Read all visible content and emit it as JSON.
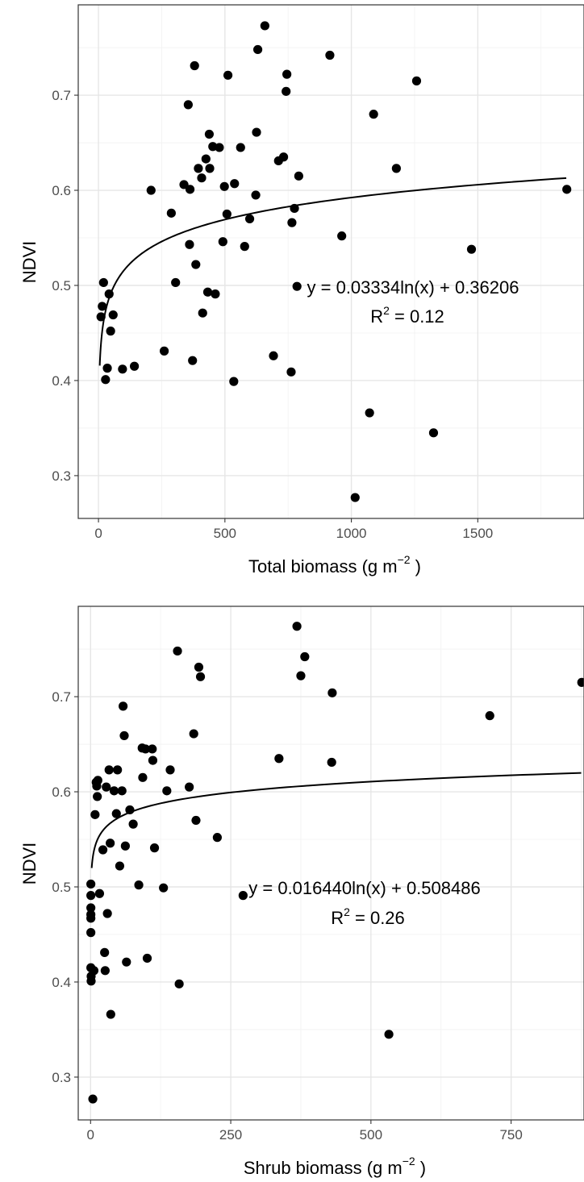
{
  "chart_data": [
    {
      "type": "scatter",
      "xlabel": "Total biomass (g m",
      "xlabel_unit_sup": "−2",
      "xlabel_end": " )",
      "ylabel": "NDVI",
      "xlim": [
        -80,
        1920
      ],
      "ylim": [
        0.255,
        0.795
      ],
      "x_ticks": [
        0,
        500,
        1000,
        1500
      ],
      "x_tick_labels": [
        "0",
        "500",
        "1000",
        "1500"
      ],
      "y_ticks": [
        0.3,
        0.4,
        0.5,
        0.6,
        0.7
      ],
      "y_tick_labels": [
        "0.3",
        "0.4",
        "0.5",
        "0.6",
        "0.7"
      ],
      "grid": true,
      "fit": {
        "a": 0.03334,
        "b": 0.36206,
        "x_start": 5,
        "x_end": 1850
      },
      "annotation": {
        "equation": "y = 0.03334ln(x) + 0.36206",
        "r2_label": "R",
        "r2_sup": "2",
        "r2_value": " = 0.12"
      },
      "points": [
        {
          "x": 10,
          "y": 0.467
        },
        {
          "x": 15,
          "y": 0.478
        },
        {
          "x": 20,
          "y": 0.503
        },
        {
          "x": 28,
          "y": 0.401
        },
        {
          "x": 35,
          "y": 0.413
        },
        {
          "x": 42,
          "y": 0.491
        },
        {
          "x": 48,
          "y": 0.452
        },
        {
          "x": 58,
          "y": 0.469
        },
        {
          "x": 95,
          "y": 0.412
        },
        {
          "x": 142,
          "y": 0.415
        },
        {
          "x": 208,
          "y": 0.6
        },
        {
          "x": 260,
          "y": 0.431
        },
        {
          "x": 288,
          "y": 0.576
        },
        {
          "x": 305,
          "y": 0.503
        },
        {
          "x": 338,
          "y": 0.606
        },
        {
          "x": 355,
          "y": 0.69
        },
        {
          "x": 360,
          "y": 0.543
        },
        {
          "x": 362,
          "y": 0.601
        },
        {
          "x": 372,
          "y": 0.421
        },
        {
          "x": 380,
          "y": 0.731
        },
        {
          "x": 385,
          "y": 0.522
        },
        {
          "x": 395,
          "y": 0.623
        },
        {
          "x": 408,
          "y": 0.613
        },
        {
          "x": 412,
          "y": 0.471
        },
        {
          "x": 425,
          "y": 0.633
        },
        {
          "x": 432,
          "y": 0.493
        },
        {
          "x": 438,
          "y": 0.659
        },
        {
          "x": 440,
          "y": 0.623
        },
        {
          "x": 452,
          "y": 0.646
        },
        {
          "x": 462,
          "y": 0.491
        },
        {
          "x": 478,
          "y": 0.645
        },
        {
          "x": 492,
          "y": 0.546
        },
        {
          "x": 498,
          "y": 0.604
        },
        {
          "x": 508,
          "y": 0.575
        },
        {
          "x": 512,
          "y": 0.721
        },
        {
          "x": 535,
          "y": 0.399
        },
        {
          "x": 538,
          "y": 0.607
        },
        {
          "x": 562,
          "y": 0.645
        },
        {
          "x": 578,
          "y": 0.541
        },
        {
          "x": 598,
          "y": 0.57
        },
        {
          "x": 622,
          "y": 0.595
        },
        {
          "x": 625,
          "y": 0.661
        },
        {
          "x": 630,
          "y": 0.748
        },
        {
          "x": 658,
          "y": 0.773
        },
        {
          "x": 692,
          "y": 0.426
        },
        {
          "x": 712,
          "y": 0.631
        },
        {
          "x": 732,
          "y": 0.635
        },
        {
          "x": 742,
          "y": 0.704
        },
        {
          "x": 745,
          "y": 0.722
        },
        {
          "x": 762,
          "y": 0.409
        },
        {
          "x": 765,
          "y": 0.566
        },
        {
          "x": 775,
          "y": 0.581
        },
        {
          "x": 785,
          "y": 0.499
        },
        {
          "x": 792,
          "y": 0.615
        },
        {
          "x": 915,
          "y": 0.742
        },
        {
          "x": 962,
          "y": 0.552
        },
        {
          "x": 1015,
          "y": 0.277
        },
        {
          "x": 1072,
          "y": 0.366
        },
        {
          "x": 1088,
          "y": 0.68
        },
        {
          "x": 1178,
          "y": 0.623
        },
        {
          "x": 1258,
          "y": 0.715
        },
        {
          "x": 1325,
          "y": 0.345
        },
        {
          "x": 1475,
          "y": 0.538
        },
        {
          "x": 1852,
          "y": 0.601
        }
      ]
    },
    {
      "type": "scatter",
      "xlabel": "Shrub biomass (g m",
      "xlabel_unit_sup": "−2",
      "xlabel_end": " )",
      "ylabel": "NDVI",
      "xlim": [
        -22,
        880
      ],
      "ylim": [
        0.255,
        0.795
      ],
      "x_ticks": [
        0,
        250,
        500,
        750
      ],
      "x_tick_labels": [
        "0",
        "250",
        "500",
        "750"
      ],
      "y_ticks": [
        0.3,
        0.4,
        0.5,
        0.6,
        0.7
      ],
      "y_tick_labels": [
        "0.3",
        "0.4",
        "0.5",
        "0.6",
        "0.7"
      ],
      "grid": true,
      "fit": {
        "a": 0.01644,
        "b": 0.508486,
        "x_start": 2,
        "x_end": 875
      },
      "annotation": {
        "equation": "y = 0.016440ln(x) + 0.508486",
        "r2_label": "R",
        "r2_sup": "2",
        "r2_value": " = 0.26"
      },
      "points": [
        {
          "x": 0.5,
          "y": 0.503
        },
        {
          "x": 0.5,
          "y": 0.491
        },
        {
          "x": 0.5,
          "y": 0.478
        },
        {
          "x": 0.5,
          "y": 0.471
        },
        {
          "x": 0.5,
          "y": 0.467
        },
        {
          "x": 0.5,
          "y": 0.452
        },
        {
          "x": 0.5,
          "y": 0.415
        },
        {
          "x": 1,
          "y": 0.406
        },
        {
          "x": 1,
          "y": 0.401
        },
        {
          "x": 4,
          "y": 0.277
        },
        {
          "x": 6,
          "y": 0.412
        },
        {
          "x": 8,
          "y": 0.576
        },
        {
          "x": 10,
          "y": 0.61
        },
        {
          "x": 11,
          "y": 0.606
        },
        {
          "x": 12,
          "y": 0.595
        },
        {
          "x": 13,
          "y": 0.612
        },
        {
          "x": 16,
          "y": 0.493
        },
        {
          "x": 22,
          "y": 0.539
        },
        {
          "x": 25,
          "y": 0.431
        },
        {
          "x": 26,
          "y": 0.412
        },
        {
          "x": 28,
          "y": 0.605
        },
        {
          "x": 30,
          "y": 0.472
        },
        {
          "x": 33,
          "y": 0.623
        },
        {
          "x": 35,
          "y": 0.546
        },
        {
          "x": 36,
          "y": 0.366
        },
        {
          "x": 42,
          "y": 0.601
        },
        {
          "x": 46,
          "y": 0.577
        },
        {
          "x": 48,
          "y": 0.623
        },
        {
          "x": 52,
          "y": 0.522
        },
        {
          "x": 56,
          "y": 0.601
        },
        {
          "x": 58,
          "y": 0.69
        },
        {
          "x": 60,
          "y": 0.659
        },
        {
          "x": 62,
          "y": 0.543
        },
        {
          "x": 64,
          "y": 0.421
        },
        {
          "x": 70,
          "y": 0.581
        },
        {
          "x": 76,
          "y": 0.566
        },
        {
          "x": 86,
          "y": 0.502
        },
        {
          "x": 92,
          "y": 0.646
        },
        {
          "x": 93,
          "y": 0.615
        },
        {
          "x": 98,
          "y": 0.645
        },
        {
          "x": 101,
          "y": 0.425
        },
        {
          "x": 110,
          "y": 0.645
        },
        {
          "x": 111,
          "y": 0.633
        },
        {
          "x": 114,
          "y": 0.541
        },
        {
          "x": 130,
          "y": 0.499
        },
        {
          "x": 136,
          "y": 0.601
        },
        {
          "x": 142,
          "y": 0.623
        },
        {
          "x": 155,
          "y": 0.748
        },
        {
          "x": 158,
          "y": 0.398
        },
        {
          "x": 176,
          "y": 0.605
        },
        {
          "x": 184,
          "y": 0.661
        },
        {
          "x": 188,
          "y": 0.57
        },
        {
          "x": 193,
          "y": 0.731
        },
        {
          "x": 196,
          "y": 0.721
        },
        {
          "x": 226,
          "y": 0.552
        },
        {
          "x": 272,
          "y": 0.491
        },
        {
          "x": 336,
          "y": 0.635
        },
        {
          "x": 368,
          "y": 0.774
        },
        {
          "x": 375,
          "y": 0.722
        },
        {
          "x": 382,
          "y": 0.742
        },
        {
          "x": 430,
          "y": 0.631
        },
        {
          "x": 431,
          "y": 0.704
        },
        {
          "x": 532,
          "y": 0.345
        },
        {
          "x": 712,
          "y": 0.68
        },
        {
          "x": 876,
          "y": 0.715
        }
      ]
    }
  ]
}
